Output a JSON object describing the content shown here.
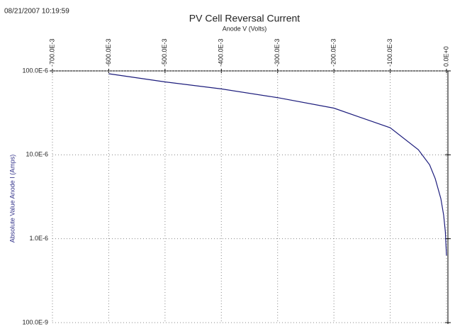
{
  "timestamp": "08/21/2007 10:19:59",
  "chart_data": {
    "type": "line",
    "title": "PV Cell Reversal Current",
    "x_label": "Anode V (Volts)",
    "y_label": "Absolute Value Anode I (Amps)",
    "x": [
      -0.6,
      -0.5,
      -0.4,
      -0.3,
      -0.2,
      -0.1,
      -0.05,
      -0.03,
      -0.02,
      -0.01,
      -0.005,
      -0.002,
      0
    ],
    "series": [
      {
        "name": "Anode I",
        "color": "#1c1c7c",
        "values": [
          9.25e-05,
          7.4e-05,
          6.1e-05,
          4.8e-05,
          3.6e-05,
          2.1e-05,
          1.15e-05,
          7.6e-06,
          5.2e-06,
          3e-06,
          1.9e-06,
          1.2e-06,
          6.3e-07
        ]
      }
    ],
    "xlim": [
      -0.7,
      0
    ],
    "xticks": [
      {
        "value": -0.7,
        "label": "-700.0E-3"
      },
      {
        "value": -0.6,
        "label": "-600.0E-3"
      },
      {
        "value": -0.5,
        "label": "-500.0E-3"
      },
      {
        "value": -0.4,
        "label": "-400.0E-3"
      },
      {
        "value": -0.3,
        "label": "-300.0E-3"
      },
      {
        "value": -0.2,
        "label": "-200.0E-3"
      },
      {
        "value": -0.1,
        "label": "-100.0E-3"
      },
      {
        "value": 0,
        "label": "0.0E+0"
      }
    ],
    "ylim": [
      1e-07,
      0.0001
    ],
    "y_scale": "log",
    "yticks": [
      {
        "value": 1e-07,
        "label": "100.0E-9"
      },
      {
        "value": 1e-06,
        "label": "1.0E-6"
      },
      {
        "value": 1e-05,
        "label": "10.0E-6"
      },
      {
        "value": 0.0001,
        "label": "100.0E-6"
      }
    ],
    "grid": true
  }
}
